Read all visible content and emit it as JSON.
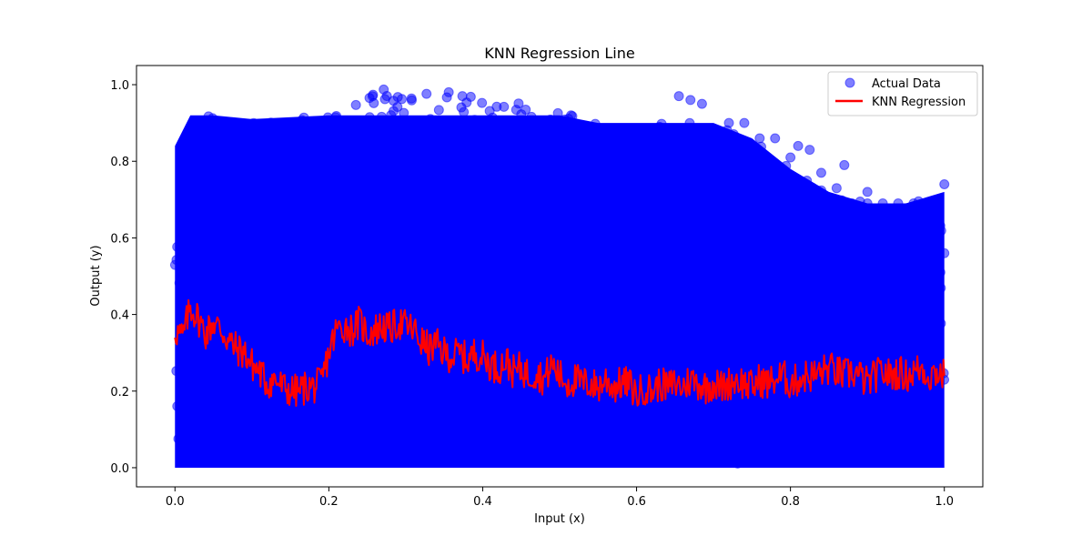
{
  "chart_data": {
    "type": "scatter",
    "title": "KNN Regression Line",
    "xlabel": "Input (x)",
    "ylabel": "Output (y)",
    "xlim": [
      -0.05,
      1.05
    ],
    "ylim": [
      -0.05,
      1.05
    ],
    "xticks": [
      0.0,
      0.2,
      0.4,
      0.6,
      0.8,
      1.0
    ],
    "yticks": [
      0.0,
      0.2,
      0.4,
      0.6,
      0.8,
      1.0
    ],
    "xtick_labels": [
      "0.0",
      "0.2",
      "0.4",
      "0.6",
      "0.8",
      "1.0"
    ],
    "ytick_labels": [
      "0.0",
      "0.2",
      "0.4",
      "0.6",
      "0.8",
      "1.0"
    ],
    "grid": false,
    "legend_position": "top-right",
    "series": [
      {
        "name": "Actual Data",
        "type": "scatter",
        "color": "#0000ff",
        "opacity": 0.5,
        "description_envelope_upper": [
          [
            0.0,
            0.84
          ],
          [
            0.02,
            0.93
          ],
          [
            0.05,
            0.92
          ],
          [
            0.1,
            0.91
          ],
          [
            0.2,
            0.92
          ],
          [
            0.25,
            0.99
          ],
          [
            0.3,
            0.99
          ],
          [
            0.35,
            0.99
          ],
          [
            0.4,
            0.99
          ],
          [
            0.45,
            0.95
          ],
          [
            0.5,
            0.93
          ],
          [
            0.55,
            0.9
          ],
          [
            0.6,
            0.9
          ],
          [
            0.65,
            0.9
          ],
          [
            0.7,
            0.9
          ],
          [
            0.75,
            0.86
          ],
          [
            0.8,
            0.78
          ],
          [
            0.85,
            0.72
          ],
          [
            0.9,
            0.69
          ],
          [
            0.95,
            0.69
          ],
          [
            1.0,
            0.72
          ]
        ],
        "envelope_lower": 0.0,
        "outliers": [
          [
            0.655,
            0.97
          ],
          [
            0.67,
            0.96
          ],
          [
            0.685,
            0.95
          ],
          [
            0.72,
            0.9
          ],
          [
            0.74,
            0.9
          ],
          [
            0.76,
            0.86
          ],
          [
            0.78,
            0.86
          ],
          [
            0.81,
            0.84
          ],
          [
            0.825,
            0.83
          ],
          [
            0.86,
            0.73
          ],
          [
            0.88,
            0.69
          ],
          [
            0.9,
            0.69
          ],
          [
            0.92,
            0.69
          ],
          [
            0.94,
            0.69
          ],
          [
            0.96,
            0.69
          ],
          [
            0.98,
            0.69
          ],
          [
            1.0,
            0.74
          ],
          [
            0.87,
            0.79
          ],
          [
            0.84,
            0.77
          ],
          [
            0.8,
            0.81
          ],
          [
            0.9,
            0.72
          ],
          [
            0.92,
            0.64
          ],
          [
            0.95,
            0.64
          ],
          [
            0.98,
            0.6
          ],
          [
            0.99,
            0.58
          ],
          [
            1.0,
            0.56
          ],
          [
            0.97,
            0.56
          ],
          [
            0.89,
            0.59
          ],
          [
            0.86,
            0.58
          ],
          [
            0.83,
            0.62
          ],
          [
            0.94,
            0.52
          ],
          [
            0.96,
            0.5
          ],
          [
            0.99,
            0.47
          ],
          [
            0.975,
            0.05
          ],
          [
            0.99,
            0.04
          ],
          [
            0.96,
            0.07
          ],
          [
            0.95,
            0.03
          ]
        ]
      },
      {
        "name": "KNN Regression",
        "type": "line",
        "color": "#ff0000",
        "x": [
          0.0,
          0.01,
          0.02,
          0.03,
          0.04,
          0.05,
          0.06,
          0.07,
          0.08,
          0.09,
          0.1,
          0.11,
          0.12,
          0.13,
          0.14,
          0.15,
          0.16,
          0.17,
          0.18,
          0.19,
          0.2,
          0.21,
          0.22,
          0.23,
          0.24,
          0.25,
          0.26,
          0.27,
          0.28,
          0.29,
          0.3,
          0.31,
          0.32,
          0.33,
          0.34,
          0.35,
          0.36,
          0.37,
          0.38,
          0.39,
          0.4,
          0.41,
          0.42,
          0.43,
          0.44,
          0.45,
          0.46,
          0.47,
          0.48,
          0.49,
          0.5,
          0.51,
          0.52,
          0.53,
          0.54,
          0.55,
          0.56,
          0.57,
          0.58,
          0.59,
          0.6,
          0.61,
          0.62,
          0.63,
          0.64,
          0.65,
          0.66,
          0.67,
          0.68,
          0.69,
          0.7,
          0.71,
          0.72,
          0.73,
          0.74,
          0.75,
          0.76,
          0.77,
          0.78,
          0.79,
          0.8,
          0.81,
          0.82,
          0.83,
          0.84,
          0.85,
          0.86,
          0.87,
          0.88,
          0.89,
          0.9,
          0.91,
          0.92,
          0.93,
          0.94,
          0.95,
          0.96,
          0.97,
          0.98,
          0.99,
          1.0
        ],
        "y": [
          0.36,
          0.34,
          0.42,
          0.39,
          0.35,
          0.38,
          0.36,
          0.33,
          0.31,
          0.3,
          0.27,
          0.25,
          0.22,
          0.23,
          0.21,
          0.2,
          0.2,
          0.21,
          0.21,
          0.22,
          0.3,
          0.36,
          0.37,
          0.36,
          0.38,
          0.35,
          0.36,
          0.37,
          0.36,
          0.38,
          0.37,
          0.36,
          0.33,
          0.31,
          0.32,
          0.3,
          0.29,
          0.3,
          0.28,
          0.3,
          0.29,
          0.27,
          0.26,
          0.28,
          0.25,
          0.26,
          0.24,
          0.25,
          0.23,
          0.27,
          0.24,
          0.22,
          0.23,
          0.22,
          0.22,
          0.21,
          0.23,
          0.21,
          0.22,
          0.22,
          0.19,
          0.21,
          0.2,
          0.22,
          0.21,
          0.22,
          0.21,
          0.23,
          0.22,
          0.21,
          0.22,
          0.21,
          0.22,
          0.23,
          0.22,
          0.21,
          0.23,
          0.22,
          0.23,
          0.24,
          0.22,
          0.23,
          0.24,
          0.24,
          0.25,
          0.26,
          0.25,
          0.24,
          0.25,
          0.24,
          0.22,
          0.24,
          0.25,
          0.24,
          0.25,
          0.24,
          0.25,
          0.26,
          0.24,
          0.25,
          0.24
        ]
      }
    ]
  }
}
